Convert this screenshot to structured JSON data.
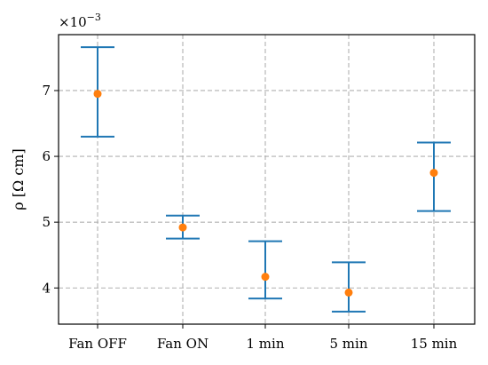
{
  "chart_data": {
    "type": "scatter",
    "title": "",
    "xlabel": "",
    "ylabel": "ρ [Ω cm]",
    "y_multiplier": "×10",
    "y_multiplier_exp": "−3",
    "categories": [
      "Fan OFF",
      "Fan ON",
      "1 min",
      "5 min",
      "15 min"
    ],
    "series": [
      {
        "values": [
          6.95,
          4.92,
          4.17,
          3.93,
          5.75
        ],
        "err_low": [
          6.3,
          4.75,
          3.84,
          3.64,
          5.17
        ],
        "err_high": [
          7.66,
          5.1,
          4.71,
          4.39,
          6.21
        ]
      }
    ],
    "yticks": [
      "4",
      "5",
      "6",
      "7"
    ],
    "ytick_values": [
      4,
      5,
      6,
      7
    ],
    "ylim": [
      3.45,
      7.85
    ],
    "grid": true,
    "colors": {
      "errorbar": "#1f77b4",
      "marker": "#ff7f0e",
      "grid": "#b0b0b0"
    }
  }
}
